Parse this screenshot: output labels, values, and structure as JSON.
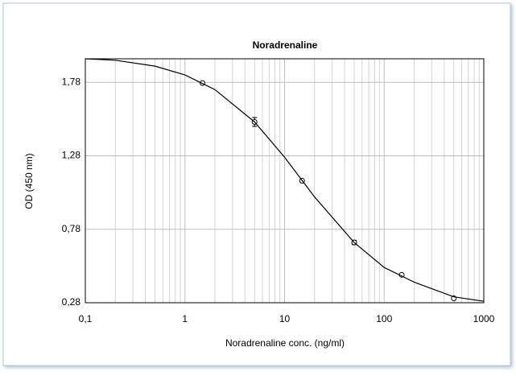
{
  "chart_data": {
    "type": "scatter",
    "title": "Noradrenaline",
    "x_label": "Noradrenaline conc. (ng/ml)",
    "y_label": "OD (450 nm)",
    "log_x": true,
    "grid": true,
    "xlim": [
      0.1,
      1000
    ],
    "ylim": [
      0.28,
      1.94
    ],
    "xticks": [
      {
        "value": 0.1,
        "label": "0,1"
      },
      1,
      10,
      100,
      1000
    ],
    "xminorticks": [
      0.2,
      0.3,
      0.4,
      0.5,
      0.6,
      0.7,
      0.8,
      0.9,
      2,
      3,
      4,
      5,
      6,
      7,
      8,
      9,
      20,
      30,
      40,
      50,
      60,
      70,
      80,
      90,
      200,
      300,
      400,
      500,
      600,
      700,
      800,
      900
    ],
    "yticks": [
      {
        "value": 0.28,
        "label": "0,28"
      },
      {
        "value": 0.78,
        "label": "0,78"
      },
      {
        "value": 1.28,
        "label": "1,28"
      },
      {
        "value": 1.78,
        "label": "1,78"
      }
    ],
    "series": [
      {
        "kind": "points",
        "color": "#000000",
        "x": [
          1.5,
          5,
          15,
          50,
          150,
          500
        ],
        "values": [
          1.775,
          1.51,
          1.11,
          0.69,
          0.47,
          0.31
        ],
        "errors": [
          null,
          0.03,
          null,
          0.015,
          null,
          null
        ]
      },
      {
        "kind": "curve",
        "color": "#000000",
        "x": [
          0.1,
          0.2,
          0.5,
          1,
          2,
          5,
          10,
          20,
          50,
          100,
          200,
          500,
          1000
        ],
        "values": [
          1.94,
          1.93,
          1.89,
          1.83,
          1.73,
          1.51,
          1.27,
          1.0,
          0.69,
          0.52,
          0.42,
          0.32,
          0.29
        ]
      }
    ]
  }
}
